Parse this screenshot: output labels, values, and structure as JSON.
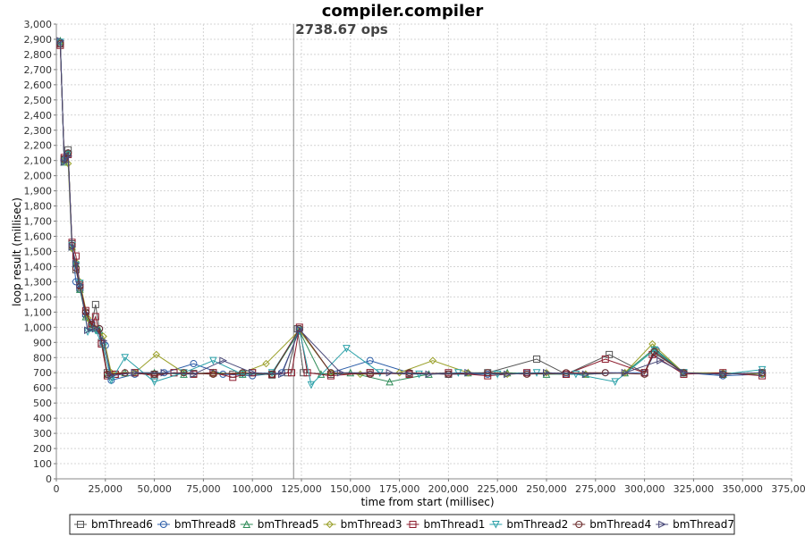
{
  "chart_data": {
    "type": "line",
    "title": "compiler.compiler",
    "xlabel": "time from start (millisec)",
    "ylabel": "loop result (millisec)",
    "xlim": [
      0,
      375000
    ],
    "ylim": [
      0,
      3000
    ],
    "x_ticks": [
      "0",
      "25,000",
      "50,000",
      "75,000",
      "100,000",
      "125,000",
      "150,000",
      "175,000",
      "200,000",
      "225,000",
      "250,000",
      "275,000",
      "300,000",
      "325,000",
      "350,000",
      "375,000"
    ],
    "y_ticks": [
      "0",
      "100",
      "200",
      "300",
      "400",
      "500",
      "600",
      "700",
      "800",
      "900",
      "1,000",
      "1,100",
      "1,200",
      "1,300",
      "1,400",
      "1,500",
      "1,600",
      "1,700",
      "1,800",
      "1,900",
      "2,000",
      "2,100",
      "2,200",
      "2,300",
      "2,400",
      "2,500",
      "2,600",
      "2,700",
      "2,800",
      "2,900",
      "3,000"
    ],
    "grid": true,
    "legend_position": "bottom",
    "annotation": {
      "text": "2738.67 ops",
      "x": 121000
    },
    "series": [
      {
        "name": "bmThread6",
        "marker": "square",
        "color": "#555555",
        "x": [
          2000,
          4000,
          6000,
          8000,
          10000,
          12000,
          15000,
          18000,
          20000,
          23000,
          26000,
          30000,
          40000,
          50000,
          60000,
          70000,
          80000,
          90000,
          100000,
          110000,
          118000,
          123000,
          126000,
          140000,
          160000,
          180000,
          200000,
          220000,
          245000,
          260000,
          282000,
          300000,
          305000,
          320000,
          340000,
          360000
        ],
        "values": [
          2870,
          2110,
          2170,
          1550,
          1380,
          1260,
          1090,
          1010,
          1150,
          900,
          700,
          690,
          700,
          690,
          700,
          695,
          700,
          690,
          700,
          685,
          700,
          990,
          700,
          690,
          700,
          695,
          690,
          700,
          790,
          690,
          820,
          700,
          830,
          700,
          690,
          700
        ]
      },
      {
        "name": "bmThread8",
        "marker": "circle",
        "color": "#2b5da8",
        "x": [
          2000,
          4000,
          6000,
          8000,
          10000,
          12000,
          15000,
          18000,
          22000,
          25000,
          28000,
          40000,
          55000,
          70000,
          85000,
          100000,
          115000,
          124000,
          140000,
          160000,
          180000,
          200000,
          220000,
          240000,
          260000,
          280000,
          300000,
          306000,
          320000,
          340000,
          360000
        ],
        "values": [
          2880,
          2100,
          2150,
          1540,
          1300,
          1250,
          1080,
          1030,
          990,
          880,
          650,
          690,
          700,
          760,
          690,
          680,
          700,
          980,
          700,
          780,
          700,
          690,
          690,
          700,
          690,
          700,
          700,
          850,
          700,
          680,
          690
        ]
      },
      {
        "name": "bmThread5",
        "marker": "triangle-up",
        "color": "#2e8b57",
        "x": [
          2000,
          4000,
          6000,
          8000,
          10000,
          12000,
          15000,
          18000,
          22000,
          26000,
          35000,
          50000,
          65000,
          80000,
          95000,
          110000,
          124000,
          135000,
          150000,
          170000,
          190000,
          210000,
          230000,
          250000,
          270000,
          290000,
          305000,
          320000,
          340000,
          360000
        ],
        "values": [
          2890,
          2090,
          2150,
          1530,
          1420,
          1250,
          1070,
          1000,
          980,
          690,
          700,
          700,
          690,
          700,
          690,
          690,
          975,
          690,
          700,
          640,
          690,
          700,
          700,
          690,
          690,
          700,
          860,
          700,
          690,
          700
        ]
      },
      {
        "name": "bmThread3",
        "marker": "diamond",
        "color": "#9aa02a",
        "x": [
          2000,
          4000,
          6000,
          8000,
          10000,
          12000,
          16000,
          20000,
          24000,
          28000,
          40000,
          51000,
          65000,
          80000,
          95000,
          107000,
          124000,
          140000,
          155000,
          175000,
          192000,
          210000,
          230000,
          250000,
          270000,
          290000,
          304000,
          320000,
          340000,
          360000
        ],
        "values": [
          2880,
          2100,
          2080,
          1520,
          1430,
          1300,
          1060,
          990,
          940,
          700,
          700,
          820,
          700,
          690,
          700,
          760,
          980,
          700,
          690,
          700,
          780,
          700,
          690,
          700,
          690,
          700,
          890,
          700,
          700,
          690
        ]
      },
      {
        "name": "bmThread1",
        "marker": "square",
        "color": "#8b1a2b",
        "x": [
          2000,
          4000,
          6000,
          8000,
          10000,
          12000,
          15000,
          18000,
          20000,
          23000,
          26000,
          30000,
          40000,
          50000,
          60000,
          70000,
          80000,
          90000,
          100000,
          110000,
          120000,
          124000,
          128000,
          140000,
          160000,
          180000,
          200000,
          220000,
          240000,
          260000,
          280000,
          300000,
          304000,
          320000,
          340000,
          360000
        ],
        "values": [
          2860,
          2120,
          2140,
          1560,
          1470,
          1280,
          1110,
          1010,
          1070,
          890,
          680,
          690,
          700,
          680,
          700,
          690,
          700,
          670,
          700,
          690,
          700,
          1000,
          700,
          680,
          700,
          690,
          700,
          680,
          700,
          690,
          790,
          700,
          820,
          690,
          700,
          680
        ]
      },
      {
        "name": "bmThread2",
        "marker": "triangle-down",
        "color": "#2aa0a8",
        "x": [
          2000,
          4000,
          6000,
          8000,
          10000,
          12000,
          16000,
          20000,
          24000,
          28000,
          35000,
          50000,
          65000,
          80000,
          95000,
          110000,
          124000,
          130000,
          148000,
          165000,
          185000,
          205000,
          225000,
          245000,
          265000,
          285000,
          305000,
          320000,
          340000,
          360000
        ],
        "values": [
          2880,
          2100,
          2140,
          1540,
          1410,
          1290,
          970,
          980,
          870,
          650,
          800,
          640,
          700,
          780,
          690,
          700,
          980,
          620,
          860,
          700,
          690,
          700,
          690,
          700,
          690,
          640,
          850,
          700,
          690,
          720
        ]
      },
      {
        "name": "bmThread4",
        "marker": "circle",
        "color": "#6b2a2a",
        "x": [
          2000,
          4000,
          6000,
          8000,
          10000,
          12000,
          15000,
          18000,
          22000,
          26000,
          35000,
          50000,
          65000,
          80000,
          95000,
          110000,
          124000,
          140000,
          160000,
          180000,
          200000,
          220000,
          240000,
          260000,
          280000,
          300000,
          305000,
          320000,
          340000,
          360000
        ],
        "values": [
          2870,
          2110,
          2150,
          1540,
          1390,
          1270,
          1100,
          1020,
          990,
          690,
          700,
          690,
          700,
          690,
          700,
          690,
          990,
          700,
          690,
          700,
          690,
          700,
          690,
          700,
          700,
          690,
          840,
          700,
          690,
          700
        ]
      },
      {
        "name": "bmThread7",
        "marker": "triangle-right",
        "color": "#4a4a7a",
        "x": [
          2000,
          4000,
          6000,
          8000,
          10000,
          12000,
          16000,
          20000,
          24000,
          28000,
          40000,
          55000,
          70000,
          85000,
          100000,
          115000,
          124000,
          145000,
          170000,
          190000,
          210000,
          230000,
          250000,
          270000,
          290000,
          308000,
          320000,
          340000,
          360000
        ],
        "values": [
          2890,
          2090,
          2130,
          1530,
          1420,
          1280,
          980,
          990,
          910,
          680,
          700,
          700,
          690,
          780,
          700,
          690,
          985,
          700,
          700,
          690,
          700,
          690,
          700,
          690,
          700,
          780,
          700,
          690,
          700
        ]
      }
    ]
  }
}
